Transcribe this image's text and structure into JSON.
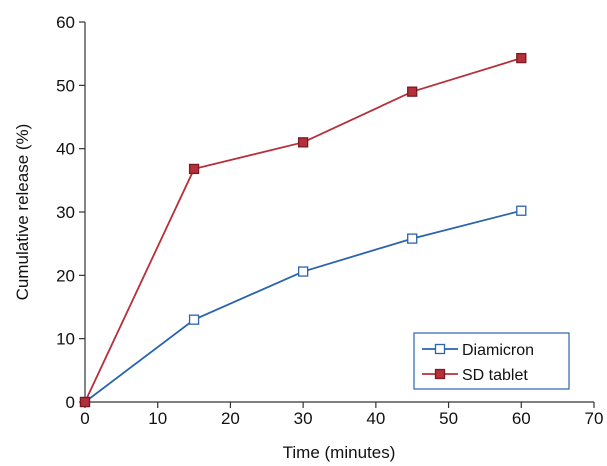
{
  "chart_data": {
    "type": "line",
    "title": "",
    "xlabel": "Time (minutes)",
    "ylabel": "Cumulative release (%)",
    "xlim": [
      0,
      70
    ],
    "ylim": [
      0,
      60
    ],
    "xticks": [
      "0",
      "10",
      "20",
      "30",
      "40",
      "50",
      "60",
      "70"
    ],
    "yticks": [
      "0",
      "10",
      "20",
      "30",
      "40",
      "50",
      "60"
    ],
    "grid": false,
    "legend_position": "bottom-right",
    "x": [
      0,
      15,
      30,
      45,
      60
    ],
    "series": [
      {
        "name": "Diamicron",
        "values": [
          0,
          13.0,
          20.6,
          25.8,
          30.2
        ],
        "color": "#2b63ad",
        "marker": "open-square"
      },
      {
        "name": "SD tablet",
        "values": [
          0,
          36.8,
          41.0,
          49.0,
          54.3
        ],
        "color": "#b5303a",
        "marker": "filled-square"
      }
    ]
  }
}
